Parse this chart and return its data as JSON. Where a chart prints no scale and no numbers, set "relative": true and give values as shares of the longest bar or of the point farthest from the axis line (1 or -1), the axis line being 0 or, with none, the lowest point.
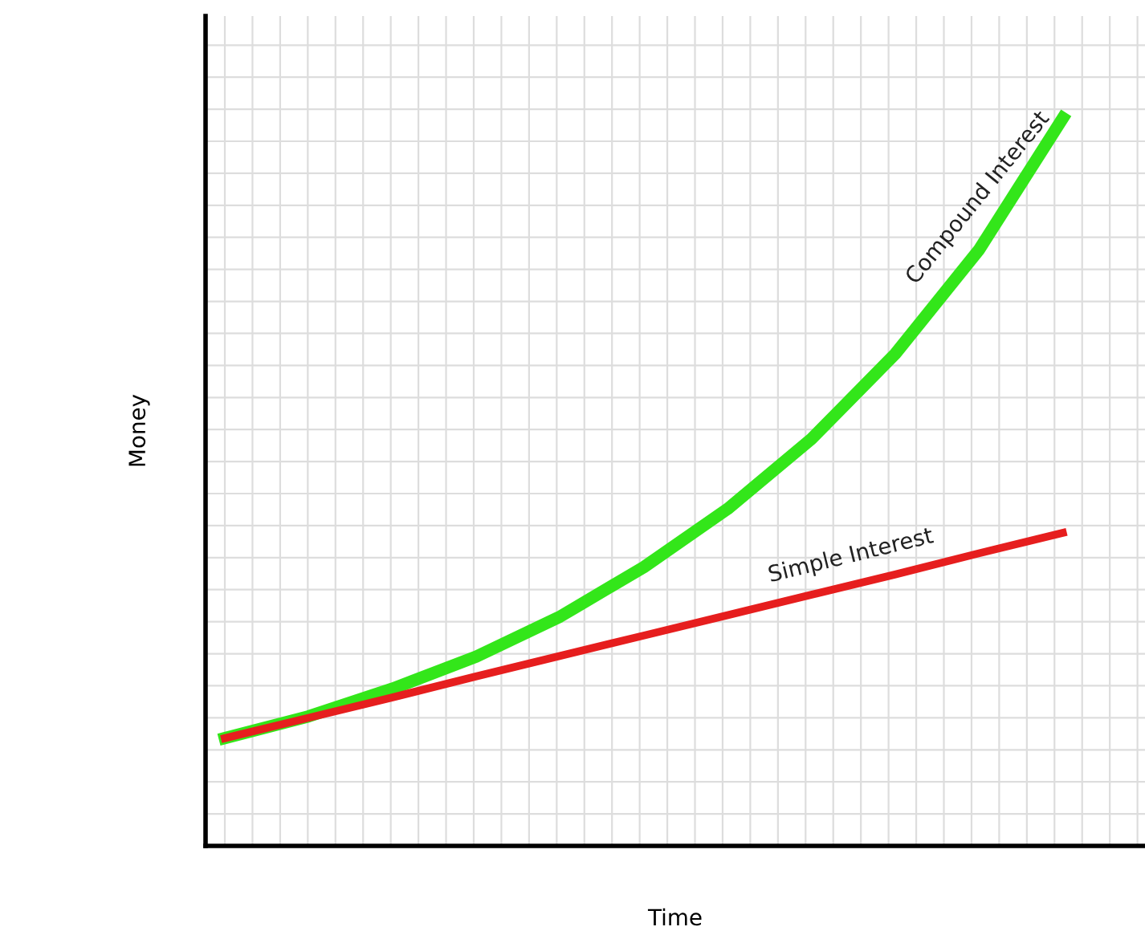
{
  "chart_data": {
    "type": "line",
    "relative": true,
    "xlabel": "Time",
    "ylabel": "Money",
    "grid": true,
    "marker": "none",
    "line_style": "solid",
    "categories": [
      null,
      null,
      null,
      null,
      null,
      null,
      null,
      null,
      null,
      null,
      null
    ],
    "series": [
      {
        "name": "Compound Interest",
        "color": "#33e61a",
        "values": [
          0.148,
          0.178,
          0.216,
          0.26,
          0.315,
          0.383,
          0.463,
          0.559,
          0.676,
          0.819,
          1.0
        ]
      },
      {
        "name": "Simple Interest",
        "color": "#e61e1e",
        "values": [
          0.148,
          0.176,
          0.204,
          0.233,
          0.261,
          0.289,
          0.317,
          0.345,
          0.373,
          0.402,
          0.43
        ]
      }
    ]
  }
}
